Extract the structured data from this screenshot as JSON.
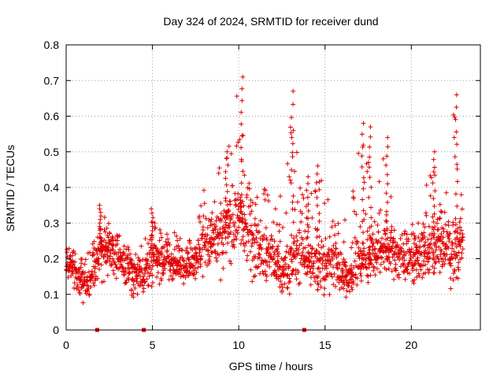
{
  "chart_data": {
    "type": "scatter",
    "title": "Day 324 of 2024, SRMTID for receiver dund",
    "xlabel": "GPS time / hours",
    "ylabel": "SRMTID / TECUs",
    "xlim": [
      0,
      24
    ],
    "ylim": [
      0,
      0.8
    ],
    "xticks": [
      0,
      5,
      10,
      15,
      20
    ],
    "xtick_labels": [
      "0",
      "5",
      "10",
      "15",
      "20"
    ],
    "yticks": [
      0,
      0.1,
      0.2,
      0.3,
      0.4,
      0.5,
      0.6,
      0.7,
      0.8
    ],
    "ytick_labels": [
      "0",
      "0.1",
      "0.2",
      "0.3",
      "0.4",
      "0.5",
      "0.6",
      "0.7",
      "0.8"
    ],
    "grid": true,
    "marker": "plus",
    "color": "#e00000",
    "zero_points_x": [
      1.8,
      4.5,
      13.8
    ],
    "envelope": {
      "description": "approximate band of the scatter cloud (low/mid/high SRMTID per time)",
      "x": [
        0.0,
        0.5,
        1.0,
        1.5,
        2.0,
        2.5,
        3.0,
        3.5,
        4.0,
        4.5,
        5.0,
        5.5,
        6.0,
        6.5,
        7.0,
        7.5,
        8.0,
        8.5,
        9.0,
        9.5,
        10.0,
        10.5,
        11.0,
        11.5,
        12.0,
        12.5,
        13.0,
        13.5,
        14.0,
        14.5,
        15.0,
        15.5,
        16.0,
        16.5,
        17.0,
        17.5,
        18.0,
        18.5,
        19.0,
        19.5,
        20.0,
        20.5,
        21.0,
        21.5,
        22.0,
        22.5,
        23.0
      ],
      "low": [
        0.12,
        0.1,
        0.05,
        0.08,
        0.1,
        0.14,
        0.12,
        0.1,
        0.08,
        0.08,
        0.1,
        0.11,
        0.11,
        0.12,
        0.12,
        0.12,
        0.13,
        0.13,
        0.13,
        0.14,
        0.16,
        0.13,
        0.12,
        0.11,
        0.1,
        0.05,
        0.08,
        0.1,
        0.1,
        0.07,
        0.08,
        0.08,
        0.07,
        0.08,
        0.1,
        0.1,
        0.12,
        0.13,
        0.12,
        0.1,
        0.1,
        0.09,
        0.1,
        0.1,
        0.1,
        0.09,
        0.12
      ],
      "mid": [
        0.17,
        0.16,
        0.12,
        0.14,
        0.22,
        0.22,
        0.2,
        0.16,
        0.15,
        0.14,
        0.18,
        0.19,
        0.17,
        0.16,
        0.17,
        0.18,
        0.21,
        0.22,
        0.24,
        0.27,
        0.3,
        0.25,
        0.21,
        0.2,
        0.19,
        0.16,
        0.19,
        0.2,
        0.18,
        0.17,
        0.18,
        0.2,
        0.14,
        0.14,
        0.17,
        0.2,
        0.21,
        0.2,
        0.21,
        0.2,
        0.2,
        0.19,
        0.21,
        0.22,
        0.22,
        0.2,
        0.24
      ],
      "high": [
        0.25,
        0.22,
        0.2,
        0.24,
        0.35,
        0.3,
        0.27,
        0.25,
        0.23,
        0.24,
        0.34,
        0.28,
        0.29,
        0.26,
        0.25,
        0.27,
        0.4,
        0.36,
        0.5,
        0.52,
        0.71,
        0.45,
        0.38,
        0.4,
        0.37,
        0.4,
        0.67,
        0.45,
        0.35,
        0.46,
        0.48,
        0.3,
        0.3,
        0.35,
        0.58,
        0.57,
        0.43,
        0.54,
        0.3,
        0.27,
        0.3,
        0.32,
        0.5,
        0.46,
        0.43,
        0.66,
        0.35
      ]
    },
    "peaks": [
      {
        "x": 10.2,
        "y": 0.71
      },
      {
        "x": 13.1,
        "y": 0.67
      },
      {
        "x": 22.6,
        "y": 0.66
      },
      {
        "x": 17.2,
        "y": 0.58
      },
      {
        "x": 17.6,
        "y": 0.57
      },
      {
        "x": 18.6,
        "y": 0.54
      },
      {
        "x": 9.3,
        "y": 0.5
      },
      {
        "x": 21.3,
        "y": 0.5
      },
      {
        "x": 14.6,
        "y": 0.46
      },
      {
        "x": 14.0,
        "y": 0.43
      },
      {
        "x": 2.0,
        "y": 0.35
      },
      {
        "x": 5.0,
        "y": 0.34
      }
    ]
  }
}
